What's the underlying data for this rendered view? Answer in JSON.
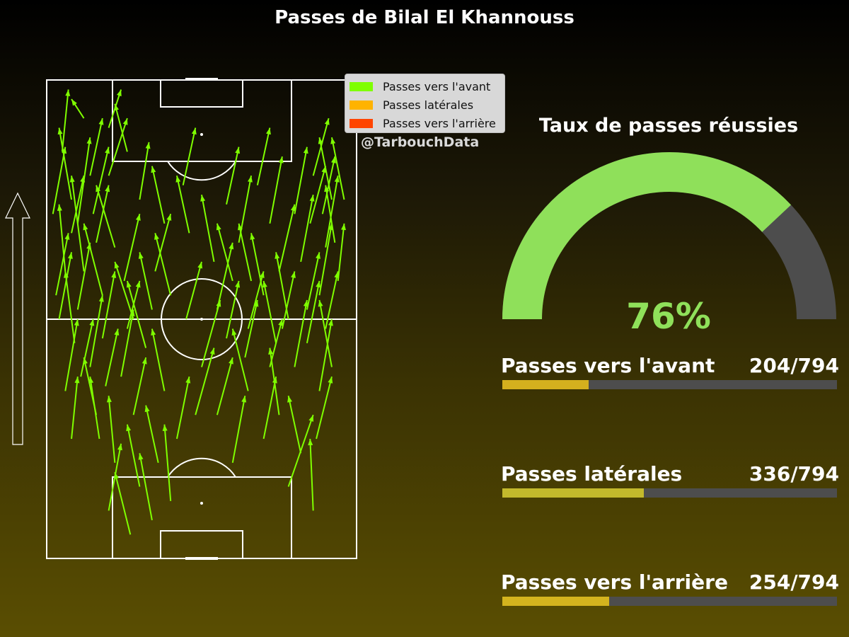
{
  "title": "Passes de Bilal El Khannouss",
  "credit": "@TarbouchData",
  "legend": [
    {
      "label": "Passes vers l'avant",
      "color": "#7fff00"
    },
    {
      "label": "Passes latérales",
      "color": "#ffb300"
    },
    {
      "label": "Passes vers l'arrière",
      "color": "#ff4500"
    }
  ],
  "gauge": {
    "title": "Taux de passes réussies",
    "value_label": "76%",
    "fraction": 0.76,
    "fill_color": "#8fe05a",
    "track_color": "#4d4d4d"
  },
  "stats": [
    {
      "label": "Passes vers l'avant",
      "value": "204/794",
      "fraction": 0.257,
      "color": "#d4b01e"
    },
    {
      "label": "Passes latérales",
      "value": "336/794",
      "fraction": 0.423,
      "color": "#c3b92c"
    },
    {
      "label": "Passes vers l'arrière",
      "value": "254/794",
      "fraction": 0.32,
      "color": "#d4b41e"
    }
  ],
  "chart_data": {
    "type": "scatter",
    "title": "Passes de Bilal El Khannouss",
    "attack_direction": "up",
    "pitch_units": "x 0-100 left to right, y 0-100 bottom to top",
    "series": [
      {
        "name": "Passes vers l'avant",
        "color": "#7fff00",
        "passes": [
          [
            5,
            85,
            7,
            98
          ],
          [
            8,
            75,
            4,
            90
          ],
          [
            10,
            70,
            14,
            88
          ],
          [
            12,
            60,
            8,
            80
          ],
          [
            15,
            72,
            20,
            86
          ],
          [
            18,
            55,
            12,
            70
          ],
          [
            20,
            80,
            26,
            92
          ],
          [
            22,
            65,
            16,
            78
          ],
          [
            25,
            58,
            30,
            72
          ],
          [
            28,
            50,
            22,
            62
          ],
          [
            30,
            75,
            33,
            87
          ],
          [
            9,
            45,
            6,
            60
          ],
          [
            14,
            40,
            18,
            55
          ],
          [
            6,
            35,
            10,
            50
          ],
          [
            16,
            30,
            12,
            42
          ],
          [
            24,
            38,
            28,
            52
          ],
          [
            32,
            44,
            26,
            58
          ],
          [
            35,
            60,
            40,
            72
          ],
          [
            40,
            55,
            35,
            68
          ],
          [
            45,
            50,
            50,
            62
          ],
          [
            55,
            52,
            60,
            66
          ],
          [
            60,
            58,
            55,
            70
          ],
          [
            65,
            48,
            70,
            60
          ],
          [
            70,
            55,
            66,
            68
          ],
          [
            75,
            60,
            80,
            74
          ],
          [
            78,
            50,
            74,
            64
          ],
          [
            82,
            62,
            86,
            76
          ],
          [
            85,
            70,
            90,
            82
          ],
          [
            88,
            55,
            92,
            70
          ],
          [
            90,
            65,
            94,
            80
          ],
          [
            92,
            75,
            88,
            88
          ],
          [
            86,
            80,
            91,
            92
          ],
          [
            80,
            72,
            84,
            86
          ],
          [
            72,
            70,
            76,
            84
          ],
          [
            68,
            78,
            72,
            90
          ],
          [
            62,
            66,
            66,
            80
          ],
          [
            58,
            74,
            62,
            86
          ],
          [
            50,
            40,
            56,
            54
          ],
          [
            48,
            30,
            54,
            44
          ],
          [
            42,
            25,
            46,
            38
          ],
          [
            38,
            35,
            34,
            48
          ],
          [
            36,
            20,
            32,
            32
          ],
          [
            30,
            15,
            26,
            28
          ],
          [
            22,
            20,
            20,
            34
          ],
          [
            17,
            25,
            14,
            38
          ],
          [
            8,
            25,
            10,
            38
          ],
          [
            20,
            10,
            24,
            24
          ],
          [
            27,
            5,
            22,
            18
          ],
          [
            34,
            8,
            30,
            22
          ],
          [
            40,
            12,
            38,
            28
          ],
          [
            55,
            30,
            60,
            42
          ],
          [
            60,
            20,
            64,
            34
          ],
          [
            65,
            35,
            60,
            48
          ],
          [
            70,
            25,
            74,
            38
          ],
          [
            75,
            30,
            72,
            44
          ],
          [
            80,
            40,
            84,
            54
          ],
          [
            84,
            45,
            88,
            58
          ],
          [
            88,
            35,
            92,
            50
          ],
          [
            92,
            40,
            88,
            54
          ],
          [
            78,
            15,
            86,
            30
          ],
          [
            82,
            22,
            78,
            34
          ],
          [
            87,
            25,
            92,
            38
          ],
          [
            86,
            10,
            85,
            25
          ],
          [
            74,
            45,
            70,
            58
          ],
          [
            66,
            58,
            62,
            70
          ],
          [
            54,
            62,
            50,
            76
          ],
          [
            46,
            68,
            42,
            80
          ],
          [
            44,
            78,
            48,
            90
          ],
          [
            38,
            70,
            34,
            82
          ],
          [
            26,
            85,
            22,
            95
          ],
          [
            20,
            90,
            24,
            98
          ],
          [
            12,
            92,
            8,
            96
          ],
          [
            6,
            60,
            4,
            74
          ],
          [
            4,
            50,
            8,
            64
          ],
          [
            10,
            52,
            14,
            66
          ],
          [
            18,
            46,
            22,
            60
          ],
          [
            26,
            48,
            30,
            58
          ],
          [
            34,
            52,
            30,
            64
          ],
          [
            58,
            46,
            62,
            58
          ],
          [
            64,
            42,
            68,
            54
          ],
          [
            72,
            40,
            76,
            50
          ],
          [
            76,
            48,
            80,
            60
          ],
          [
            84,
            52,
            88,
            64
          ],
          [
            90,
            48,
            94,
            60
          ],
          [
            94,
            58,
            96,
            70
          ],
          [
            93,
            66,
            90,
            78
          ],
          [
            89,
            72,
            93,
            84
          ],
          [
            96,
            75,
            92,
            88
          ],
          [
            14,
            80,
            18,
            92
          ],
          [
            16,
            66,
            20,
            78
          ],
          [
            8,
            68,
            12,
            80
          ],
          [
            2,
            72,
            6,
            86
          ],
          [
            3,
            55,
            7,
            68
          ],
          [
            11,
            38,
            15,
            50
          ],
          [
            19,
            36,
            23,
            48
          ],
          [
            28,
            30,
            32,
            42
          ]
        ]
      },
      {
        "name": "Passes latérales",
        "color": "#ffb300",
        "passes": []
      },
      {
        "name": "Passes vers l'arrière",
        "color": "#ff4500",
        "passes": []
      }
    ]
  }
}
